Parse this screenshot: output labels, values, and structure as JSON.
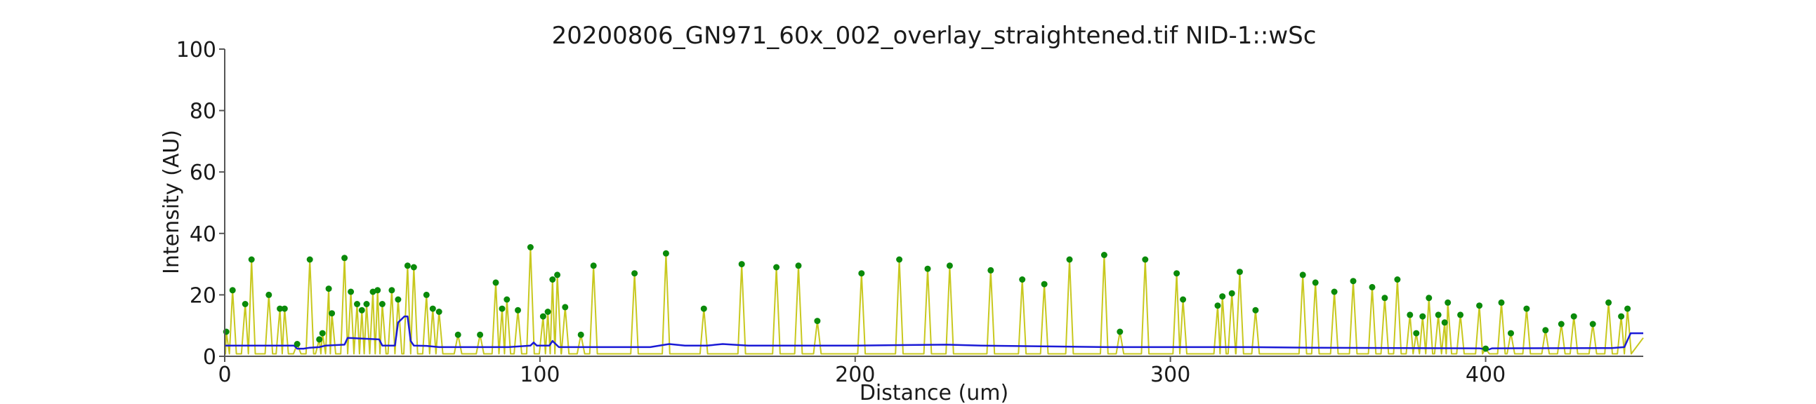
{
  "chart_data": {
    "type": "line",
    "title": "20200806_GN971_60x_002_overlay_straightened.tif NID-1::wSc",
    "xlabel": "Distance (um)",
    "ylabel": "Intensity (AU)",
    "xlim": [
      0,
      450
    ],
    "ylim": [
      0,
      100
    ],
    "xticks": [
      0,
      100,
      200,
      300,
      400
    ],
    "yticks": [
      0,
      20,
      40,
      60,
      80,
      100
    ],
    "grid": false,
    "colors": {
      "signal": "#c8c81e",
      "baseline": "#1a1ad6",
      "peaks": "#0a8a0a",
      "axis": "#555555"
    },
    "peaks": [
      [
        0.5,
        8
      ],
      [
        2.5,
        21.5
      ],
      [
        6.5,
        17
      ],
      [
        8.5,
        31.5
      ],
      [
        14,
        20
      ],
      [
        17.5,
        15.5
      ],
      [
        19,
        15.5
      ],
      [
        23,
        4
      ],
      [
        27,
        31.5
      ],
      [
        30,
        5.5
      ],
      [
        31,
        7.5
      ],
      [
        33,
        22
      ],
      [
        34,
        14
      ],
      [
        38,
        32
      ],
      [
        40,
        21
      ],
      [
        42,
        17
      ],
      [
        43.5,
        15
      ],
      [
        45,
        17
      ],
      [
        47,
        21
      ],
      [
        48.5,
        21.5
      ],
      [
        50,
        17
      ],
      [
        53,
        21.5
      ],
      [
        55,
        18.5
      ],
      [
        58,
        29.5
      ],
      [
        60,
        29
      ],
      [
        64,
        20
      ],
      [
        66,
        15.5
      ],
      [
        68,
        14.5
      ],
      [
        74,
        7
      ],
      [
        81,
        7
      ],
      [
        86,
        24
      ],
      [
        88,
        15.5
      ],
      [
        89.5,
        18.5
      ],
      [
        93,
        15
      ],
      [
        97,
        35.5
      ],
      [
        101,
        13
      ],
      [
        102.5,
        14.5
      ],
      [
        104,
        25
      ],
      [
        105.5,
        26.5
      ],
      [
        108,
        16
      ],
      [
        113,
        7
      ],
      [
        117,
        29.5
      ],
      [
        130,
        27
      ],
      [
        140,
        33.5
      ],
      [
        152,
        15.5
      ],
      [
        164,
        30
      ],
      [
        175,
        29
      ],
      [
        182,
        29.5
      ],
      [
        188,
        11.5
      ],
      [
        202,
        27
      ],
      [
        214,
        31.5
      ],
      [
        223,
        28.5
      ],
      [
        230,
        29.5
      ],
      [
        243,
        28
      ],
      [
        253,
        25
      ],
      [
        260,
        23.5
      ],
      [
        268,
        31.5
      ],
      [
        279,
        33
      ],
      [
        284,
        8
      ],
      [
        292,
        31.5
      ],
      [
        302,
        27
      ],
      [
        304,
        18.5
      ],
      [
        315,
        16.5
      ],
      [
        316.5,
        19.5
      ],
      [
        319.5,
        20.5
      ],
      [
        322,
        27.5
      ],
      [
        327,
        15
      ],
      [
        342,
        26.5
      ],
      [
        346,
        24
      ],
      [
        352,
        21
      ],
      [
        358,
        24.5
      ],
      [
        364,
        22.5
      ],
      [
        368,
        19
      ],
      [
        372,
        25
      ],
      [
        376,
        13.5
      ],
      [
        378,
        7.5
      ],
      [
        380,
        13
      ],
      [
        382,
        19
      ],
      [
        385,
        13.5
      ],
      [
        387,
        11
      ],
      [
        388,
        17.5
      ],
      [
        392,
        13.5
      ],
      [
        398,
        16.5
      ],
      [
        400,
        2.5
      ],
      [
        405,
        17.5
      ],
      [
        408,
        7.5
      ],
      [
        413,
        15.5
      ],
      [
        419,
        8.5
      ],
      [
        424,
        10.5
      ],
      [
        428,
        13
      ],
      [
        434,
        10.5
      ],
      [
        439,
        17.5
      ],
      [
        443,
        13
      ],
      [
        445,
        15.5
      ]
    ],
    "baseline": [
      [
        0,
        3.5
      ],
      [
        22,
        3.5
      ],
      [
        23,
        2.5
      ],
      [
        25,
        2.5
      ],
      [
        27,
        2.8
      ],
      [
        30,
        3
      ],
      [
        32,
        3.5
      ],
      [
        38,
        3.8
      ],
      [
        39,
        6
      ],
      [
        49,
        5.5
      ],
      [
        50,
        3.5
      ],
      [
        54,
        3.5
      ],
      [
        55,
        11
      ],
      [
        57,
        13
      ],
      [
        58,
        13
      ],
      [
        59,
        5
      ],
      [
        60,
        3.5
      ],
      [
        64,
        3.4
      ],
      [
        68,
        3
      ],
      [
        72,
        3
      ],
      [
        90,
        3
      ],
      [
        97,
        3.5
      ],
      [
        98,
        4.5
      ],
      [
        99,
        3.5
      ],
      [
        103,
        3.5
      ],
      [
        104,
        5
      ],
      [
        105,
        4
      ],
      [
        106,
        3
      ],
      [
        120,
        3
      ],
      [
        135,
        3
      ],
      [
        141,
        4
      ],
      [
        146,
        3.5
      ],
      [
        153,
        3.5
      ],
      [
        158,
        4
      ],
      [
        166,
        3.5
      ],
      [
        200,
        3.5
      ],
      [
        229,
        3.8
      ],
      [
        240,
        3.5
      ],
      [
        280,
        3
      ],
      [
        303,
        3
      ],
      [
        310,
        3
      ],
      [
        325,
        3
      ],
      [
        345,
        2.8
      ],
      [
        398,
        2.6
      ],
      [
        401,
        2.2
      ],
      [
        402,
        2.6
      ],
      [
        440,
        2.7
      ],
      [
        444,
        3
      ],
      [
        446,
        7.5
      ],
      [
        450,
        7.5
      ]
    ]
  }
}
